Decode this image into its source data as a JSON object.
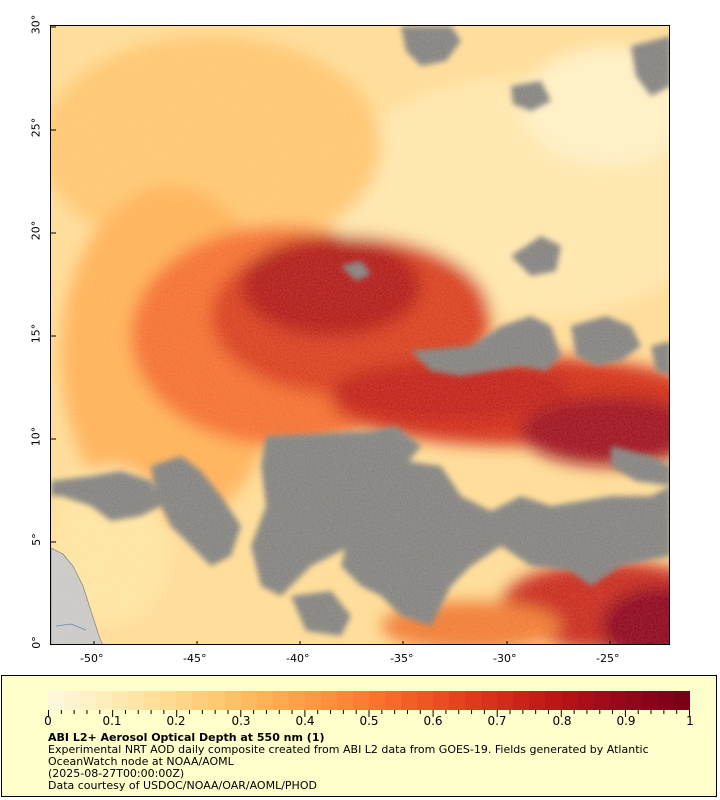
{
  "map": {
    "lat_labels": [
      "30°",
      "25°",
      "20°",
      "15°",
      "10°",
      "5°",
      "0°"
    ],
    "lon_labels": [
      "-50°",
      "-45°",
      "-40°",
      "-35°",
      "-30°",
      "-25°"
    ],
    "lat_range": [
      0,
      30
    ],
    "lon_range": [
      -52,
      -22
    ],
    "colors": {
      "no_data": "#808080",
      "land": "#c8c8c8",
      "low": "#ffefc0",
      "high": "#7a0018"
    }
  },
  "legend": {
    "colorbar_labels": [
      "0",
      "0.1",
      "0.2",
      "0.3",
      "0.4",
      "0.5",
      "0.6",
      "0.7",
      "0.8",
      "0.9",
      "1"
    ],
    "colorbar_range": [
      0,
      1
    ],
    "title": "ABI L2+ Aerosol Optical Depth at 550 nm (1)",
    "description_lines": [
      "Experimental NRT AOD daily composite created from ABI L2 data from GOES-19. Fields generated by Atlantic",
      "OceanWatch node at NOAA/AOML",
      "(2025-08-27T00:00:00Z)",
      "Data courtesy of USDOC/NOAA/OAR/AOML/PHOD"
    ],
    "palette": [
      "#fff7d9",
      "#ffefc0",
      "#ffe4a3",
      "#ffd689",
      "#ffc56e",
      "#ffb256",
      "#ff9c44",
      "#fd8436",
      "#f86a2b",
      "#ee5122",
      "#e03a1c",
      "#cf2618",
      "#bb1517",
      "#a40b1a",
      "#8c051b",
      "#7a0018"
    ]
  }
}
